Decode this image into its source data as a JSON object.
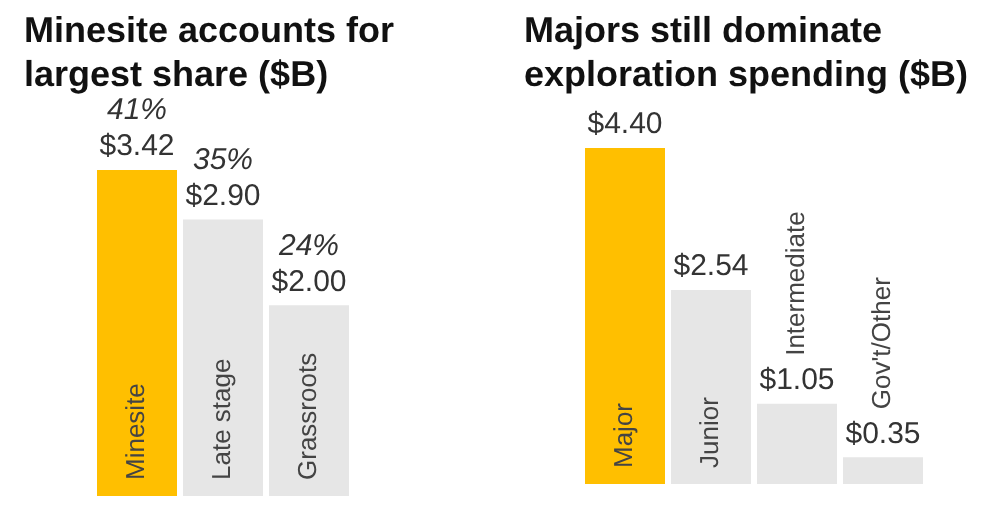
{
  "chart_data": [
    {
      "type": "bar",
      "title": "Minesite accounts for largest share ($B)",
      "categories": [
        "Minesite",
        "Late stage",
        "Grassroots"
      ],
      "values": [
        3.42,
        2.9,
        2.0
      ],
      "colors": [
        "#ffbf00",
        "#e6e6e6",
        "#e6e6e6"
      ],
      "value_labels": [
        "$3.42",
        "$2.90",
        "$2.00"
      ],
      "annotations": [
        {
          "text": "41%",
          "x": "Minesite",
          "y": 3.42
        },
        {
          "text": "35%",
          "x": "Late stage",
          "y": 2.9
        },
        {
          "text": "24%",
          "x": "Grassroots",
          "y": 2.0
        }
      ]
    },
    {
      "type": "bar",
      "title": "Majors still dominate exploration spending ($B)",
      "categories": [
        "Major",
        "Junior",
        "Intermediate",
        "Gov't/Other"
      ],
      "values": [
        4.4,
        2.54,
        1.05,
        0.35
      ],
      "colors": [
        "#ffbf00",
        "#e6e6e6",
        "#e6e6e6",
        "#e6e6e6"
      ],
      "value_labels": [
        "$4.40",
        "$2.54",
        "$1.05",
        "$0.35"
      ]
    }
  ]
}
